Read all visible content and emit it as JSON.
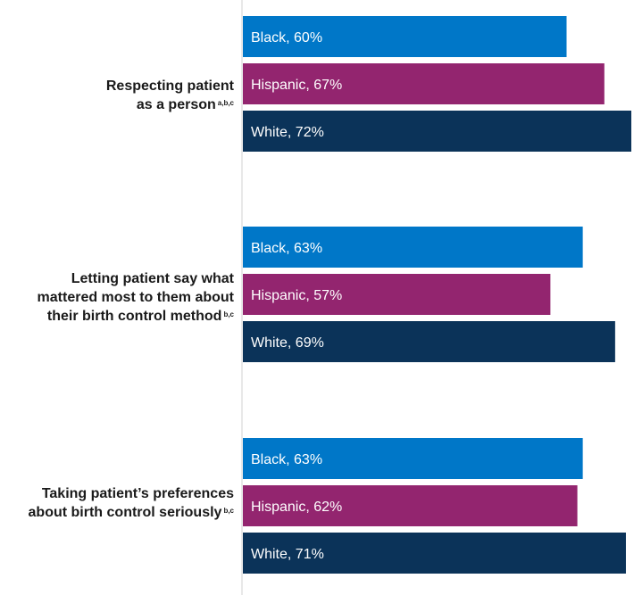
{
  "chart_data": {
    "type": "bar",
    "orientation": "horizontal",
    "title": "",
    "xlabel": "",
    "ylabel": "",
    "xlim": [
      0,
      73
    ],
    "grid": false,
    "legend": "none",
    "categories": [
      {
        "lines": [
          "Respecting patient",
          "as a person"
        ],
        "note": "a,b,c"
      },
      {
        "lines": [
          "Letting patient say what",
          "mattered most to them about",
          "their birth control method"
        ],
        "note": "b,c"
      },
      {
        "lines": [
          "Taking patient’s preferences",
          "about birth control seriously"
        ],
        "note": "b,c"
      }
    ],
    "series": [
      {
        "name": "Black",
        "color": "#0077c8",
        "values": [
          60,
          63,
          63
        ]
      },
      {
        "name": "Hispanic",
        "color": "#93256f",
        "values": [
          67,
          57,
          62
        ]
      },
      {
        "name": "White",
        "color": "#0b3359",
        "values": [
          72,
          69,
          71
        ]
      }
    ],
    "bar_labels": [
      [
        "Black, 60%",
        "Hispanic, 67%",
        "White, 72%"
      ],
      [
        "Black, 63%",
        "Hispanic, 57%",
        "White, 69%"
      ],
      [
        "Black, 63%",
        "Hispanic, 62%",
        "White, 71%"
      ]
    ]
  }
}
